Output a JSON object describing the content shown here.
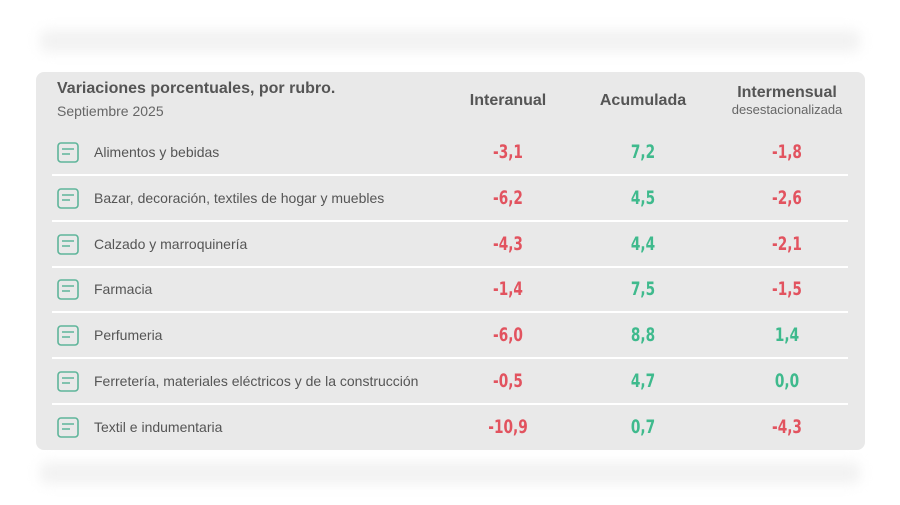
{
  "header": {
    "title": "Variaciones porcentuales, por rubro.",
    "subtitle": "Septiembre 2025"
  },
  "table": {
    "columns": [
      {
        "title": "Interanual"
      },
      {
        "title": "Acumulada"
      },
      {
        "title": "Intermensual",
        "subtitle": "desestacionalizada"
      }
    ],
    "rows": [
      {
        "label": "Alimentos y bebidas",
        "values": [
          "-3,1",
          "7,2",
          "-1,8"
        ]
      },
      {
        "label": "Bazar, decoración, textiles de hogar y muebles",
        "values": [
          "-6,2",
          "4,5",
          "-2,6"
        ]
      },
      {
        "label": "Calzado y marroquinería",
        "values": [
          "-4,3",
          "4,4",
          "-2,1"
        ]
      },
      {
        "label": "Farmacia",
        "values": [
          "-1,4",
          "7,5",
          "-1,5"
        ]
      },
      {
        "label": "Perfumeria",
        "values": [
          "-6,0",
          "8,8",
          "1,4"
        ]
      },
      {
        "label": "Ferretería, materiales eléctricos y de la construcción",
        "values": [
          "-0,5",
          "4,7",
          "0,0"
        ]
      },
      {
        "label": "Textil e indumentaria",
        "values": [
          "-10,9",
          "0,7",
          "-4,3"
        ]
      }
    ]
  }
}
